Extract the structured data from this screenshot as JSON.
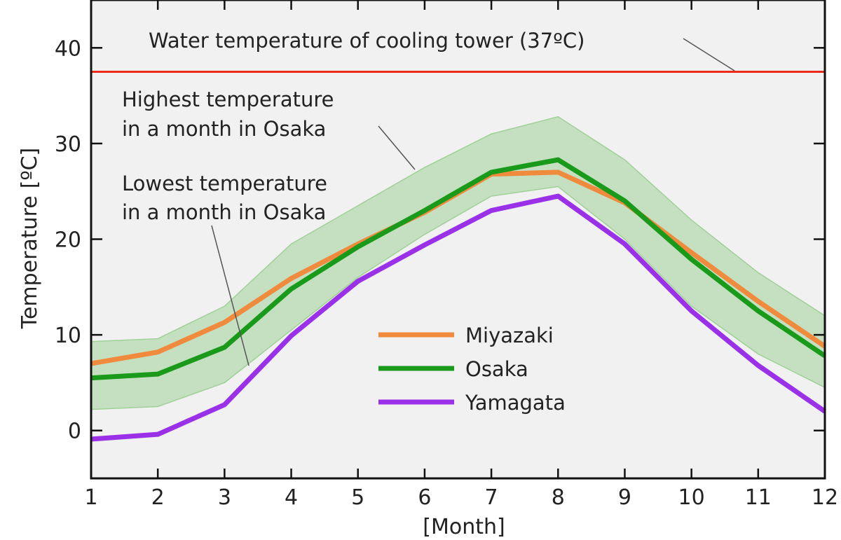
{
  "chart_data": {
    "type": "line",
    "title": "",
    "xlabel": "[Month]",
    "ylabel": "Temperature",
    "ylabel_unit": "[ºC]",
    "x": [
      1,
      2,
      3,
      4,
      5,
      6,
      7,
      8,
      9,
      10,
      11,
      12
    ],
    "x_tick_labels": [
      "1",
      "2",
      "3",
      "4",
      "5",
      "6",
      "7",
      "8",
      "9",
      "10",
      "11",
      "12"
    ],
    "y_ticks": [
      0,
      10,
      20,
      30,
      40
    ],
    "y_tick_labels": [
      "0",
      "10",
      "20",
      "30",
      "40"
    ],
    "xlim": [
      1,
      12
    ],
    "ylim": [
      -5,
      45
    ],
    "grid": false,
    "legend_position": "center-right",
    "series": [
      {
        "name": "Miyazaki",
        "color": "#f08a3c",
        "values": [
          7.0,
          8.2,
          11.3,
          15.9,
          19.5,
          22.8,
          26.8,
          27.0,
          23.8,
          18.6,
          13.5,
          8.8
        ]
      },
      {
        "name": "Osaka",
        "color": "#1a9a1a",
        "values": [
          5.5,
          5.9,
          8.7,
          14.8,
          19.2,
          23.0,
          27.0,
          28.3,
          24.0,
          17.9,
          12.5,
          7.8
        ]
      },
      {
        "name": "Yamagata",
        "color": "#9a30e8",
        "values": [
          -0.9,
          -0.4,
          2.7,
          9.9,
          15.6,
          19.4,
          23.0,
          24.5,
          19.5,
          12.5,
          6.8,
          2.0
        ]
      }
    ],
    "band": {
      "color": "#9fd197",
      "upper": [
        9.3,
        9.6,
        13.0,
        19.5,
        23.5,
        27.5,
        31.0,
        32.8,
        28.3,
        22.0,
        16.5,
        12.0
      ],
      "lower": [
        2.2,
        2.5,
        5.0,
        10.5,
        16.0,
        20.5,
        24.5,
        25.5,
        20.0,
        13.0,
        8.0,
        4.5
      ]
    },
    "reference_line": {
      "value": 37.5,
      "color": "#ee2a1b"
    },
    "annotations": {
      "cooling_tower": "Water temperature of cooling tower (37ºC)",
      "highest": [
        "Highest temperature",
        "in a month in Osaka"
      ],
      "lowest": [
        "Lowest temperature",
        "in a month in Osaka"
      ]
    }
  }
}
